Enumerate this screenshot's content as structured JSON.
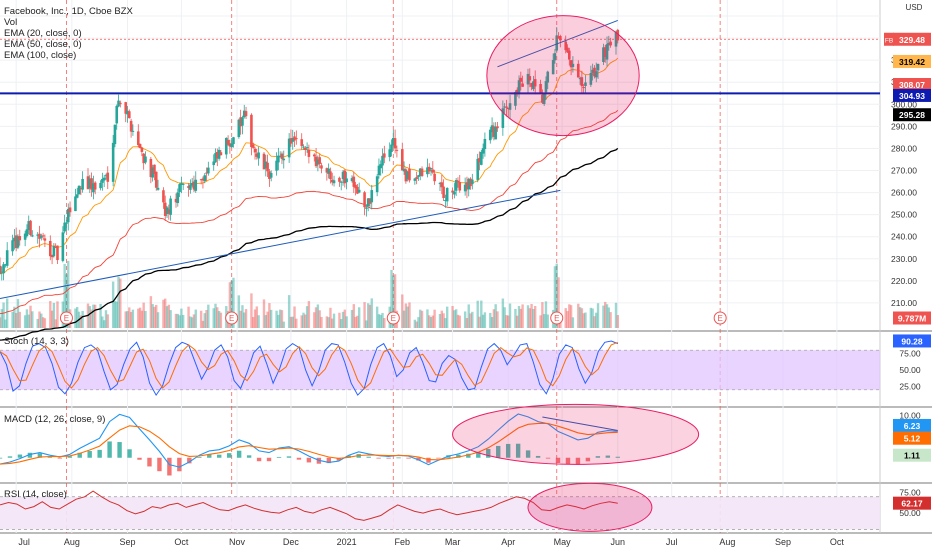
{
  "header": {
    "title": "Facebook, Inc., 1D, Cboe BZX",
    "currency": "USD",
    "overlays": [
      "Vol",
      "EMA (20, close, 0)",
      "EMA (50, close, 0)",
      "EMA (100, close)"
    ]
  },
  "panes": {
    "stoch": {
      "label": "Stoch (14, 3, 3)"
    },
    "macd": {
      "label": "MACD (12, 26, close, 9)"
    },
    "rsi": {
      "label": "RSI (14, close)"
    }
  },
  "time_axis": {
    "labels": [
      "Jul",
      "Aug",
      "Sep",
      "Oct",
      "Nov",
      "Dec",
      "2021",
      "Feb",
      "Mar",
      "Apr",
      "May",
      "Jun",
      "Jul",
      "Aug",
      "Sep",
      "Oct"
    ]
  },
  "earnings_marker": "E",
  "colors": {
    "up": "#26a69a",
    "down": "#ef5350",
    "ema20": "#ff9800",
    "ema50": "#f44336",
    "ema100": "#000000",
    "trendline": "#1e5bb8",
    "horizontal_level": "#0d1bb0",
    "highlight_ellipse": "#e91e63",
    "stoch_band": "#e1c4ff",
    "stoch_k": "#2962ff",
    "stoch_d": "#ff6d00",
    "macd": "#2196f3",
    "macd_signal": "#ff6d00",
    "rsi": "#d32f2f",
    "rsi_band": "#f3e6f7"
  },
  "chart_data": [
    {
      "type": "candlestick",
      "title": "Facebook, Inc., 1D, Cboe BZX",
      "x_range": [
        "2020-06-22",
        "2021-10-25"
      ],
      "y_axis": {
        "ticks": [
          210,
          220,
          230,
          240,
          250,
          260,
          270,
          280,
          290,
          300,
          310,
          320,
          330,
          340
        ],
        "range": [
          200,
          345
        ],
        "unit": "USD"
      },
      "price_path": [
        [
          "2020-06-22",
          226
        ],
        [
          "2020-07-01",
          238
        ],
        [
          "2020-07-08",
          244
        ],
        [
          "2020-07-15",
          239
        ],
        [
          "2020-07-24",
          231
        ],
        [
          "2020-07-31",
          253
        ],
        [
          "2020-08-07",
          266
        ],
        [
          "2020-08-14",
          262
        ],
        [
          "2020-08-21",
          268
        ],
        [
          "2020-08-27",
          304
        ],
        [
          "2020-09-01",
          295
        ],
        [
          "2020-09-08",
          280
        ],
        [
          "2020-09-15",
          268
        ],
        [
          "2020-09-22",
          250
        ],
        [
          "2020-10-01",
          262
        ],
        [
          "2020-10-09",
          265
        ],
        [
          "2020-10-16",
          270
        ],
        [
          "2020-10-23",
          278
        ],
        [
          "2020-10-29",
          285
        ],
        [
          "2020-11-05",
          294
        ],
        [
          "2020-11-12",
          276
        ],
        [
          "2020-11-20",
          268
        ],
        [
          "2020-12-01",
          284
        ],
        [
          "2020-12-09",
          278
        ],
        [
          "2020-12-16",
          275
        ],
        [
          "2020-12-23",
          268
        ],
        [
          "2021-01-05",
          266
        ],
        [
          "2021-01-12",
          252
        ],
        [
          "2021-01-20",
          273
        ],
        [
          "2021-01-27",
          284
        ],
        [
          "2021-02-03",
          266
        ],
        [
          "2021-02-10",
          268
        ],
        [
          "2021-02-17",
          270
        ],
        [
          "2021-02-25",
          258
        ],
        [
          "2021-03-04",
          263
        ],
        [
          "2021-03-12",
          265
        ],
        [
          "2021-03-19",
          284
        ],
        [
          "2021-03-26",
          290
        ],
        [
          "2021-04-05",
          307
        ],
        [
          "2021-04-12",
          311
        ],
        [
          "2021-04-20",
          301
        ],
        [
          "2021-04-28",
          329
        ],
        [
          "2021-05-06",
          318
        ],
        [
          "2021-05-13",
          306
        ],
        [
          "2021-05-20",
          316
        ],
        [
          "2021-05-27",
          328
        ],
        [
          "2021-06-01",
          330
        ]
      ],
      "series": [
        {
          "name": "EMA (20, close, 0)",
          "last": 319.42
        },
        {
          "name": "EMA (50, close, 0)",
          "last": 308.07
        },
        {
          "name": "EMA (100, close)",
          "last": 295.28
        }
      ],
      "price_labels": {
        "symbol": "FB",
        "last": 329.48,
        "level": 304.93
      },
      "volume_label": "9.787M",
      "ascending_support_line": [
        [
          "2020-06-22",
          212
        ],
        [
          "2021-04-30",
          261
        ]
      ],
      "horizontal_line": 304.93,
      "rising_top_line": [
        [
          "2021-03-26",
          317
        ],
        [
          "2021-06-01",
          338
        ]
      ],
      "earnings_dates": [
        "2020-07-29",
        "2020-10-29",
        "2021-01-27",
        "2021-04-28",
        "2021-07-28"
      ]
    },
    {
      "type": "line",
      "title": "Stoch (14, 3, 3)",
      "y_axis": {
        "ticks": [
          25,
          50,
          75
        ],
        "range": [
          0,
          100
        ]
      },
      "bands": [
        20,
        80
      ],
      "last_value": 90.28,
      "series": [
        {
          "values": [
            78,
            58,
            18,
            26,
            60,
            86,
            90,
            84,
            60,
            24,
            14,
            30,
            62,
            84,
            88,
            80,
            48,
            20,
            28,
            58,
            82,
            92,
            70,
            30,
            12,
            26,
            58,
            84,
            92,
            88,
            62,
            36,
            54,
            80,
            88,
            70,
            34,
            22,
            46,
            76,
            86,
            60,
            30,
            52,
            82,
            90,
            84,
            50,
            26,
            48,
            80,
            90,
            88,
            62,
            30,
            12,
            22,
            58,
            84,
            90,
            72,
            40,
            50,
            76,
            84,
            62,
            34,
            32,
            60,
            72,
            66,
            38,
            20,
            22,
            54,
            82,
            90,
            80,
            58,
            72,
            88,
            90,
            62,
            28,
            14,
            36,
            74,
            88,
            84,
            52,
            30,
            46,
            78,
            92,
            94,
            90
          ]
        }
      ]
    },
    {
      "type": "line",
      "title": "MACD (12, 26, close, 9)",
      "y_axis": {
        "ticks": [
          0,
          5,
          10
        ],
        "range": [
          -5,
          11
        ]
      },
      "last_values": {
        "macd": 6.23,
        "signal": 5.12,
        "histogram": 1.11
      },
      "series": [
        {
          "values": [
            -1.5,
            -1,
            -0.2,
            0.8,
            1.2,
            0.6,
            0.2,
            0.8,
            2.2,
            3.4,
            4.6,
            8.5,
            10.2,
            9.5,
            6.8,
            4.2,
            1.5,
            -1.6,
            -2.2,
            -1,
            0.6,
            1.6,
            1.9,
            2.8,
            4.2,
            3.4,
            1.6,
            1.2,
            2.3,
            2.6,
            1.6,
            0.4,
            -0.6,
            -1.1,
            -0.8,
            0.6,
            1.4,
            0.9,
            0.5,
            0.3,
            0.6,
            0.4,
            -0.5,
            -1.6,
            -0.6,
            0.4,
            0.9,
            1.6,
            2.6,
            4.4,
            6.5,
            8.6,
            10.3,
            9.6,
            8.5,
            8.0,
            6.2,
            5.2,
            4.2,
            4.6,
            6.0,
            6.4,
            6.23
          ]
        }
      ]
    },
    {
      "type": "line",
      "title": "RSI (14, close)",
      "y_axis": {
        "ticks": [
          50,
          75
        ],
        "range": [
          28,
          82
        ]
      },
      "bands": [
        30,
        70
      ],
      "last_value": 62.17,
      "series": [
        {
          "values": [
            60,
            63,
            61,
            55,
            58,
            64,
            57,
            55,
            61,
            67,
            70,
            77,
            70,
            64,
            60,
            53,
            49,
            52,
            58,
            56,
            60,
            62,
            57,
            60,
            63,
            58,
            54,
            53,
            57,
            60,
            56,
            53,
            51,
            50,
            54,
            57,
            52,
            50,
            54,
            57,
            53,
            49,
            43,
            41,
            44,
            47,
            54,
            60,
            56,
            52,
            50,
            53,
            55,
            51,
            48,
            50,
            52,
            54,
            57,
            62,
            66,
            70,
            68,
            63,
            54,
            53,
            57,
            60,
            58,
            55,
            59,
            62,
            64,
            62.17
          ]
        }
      ]
    }
  ]
}
